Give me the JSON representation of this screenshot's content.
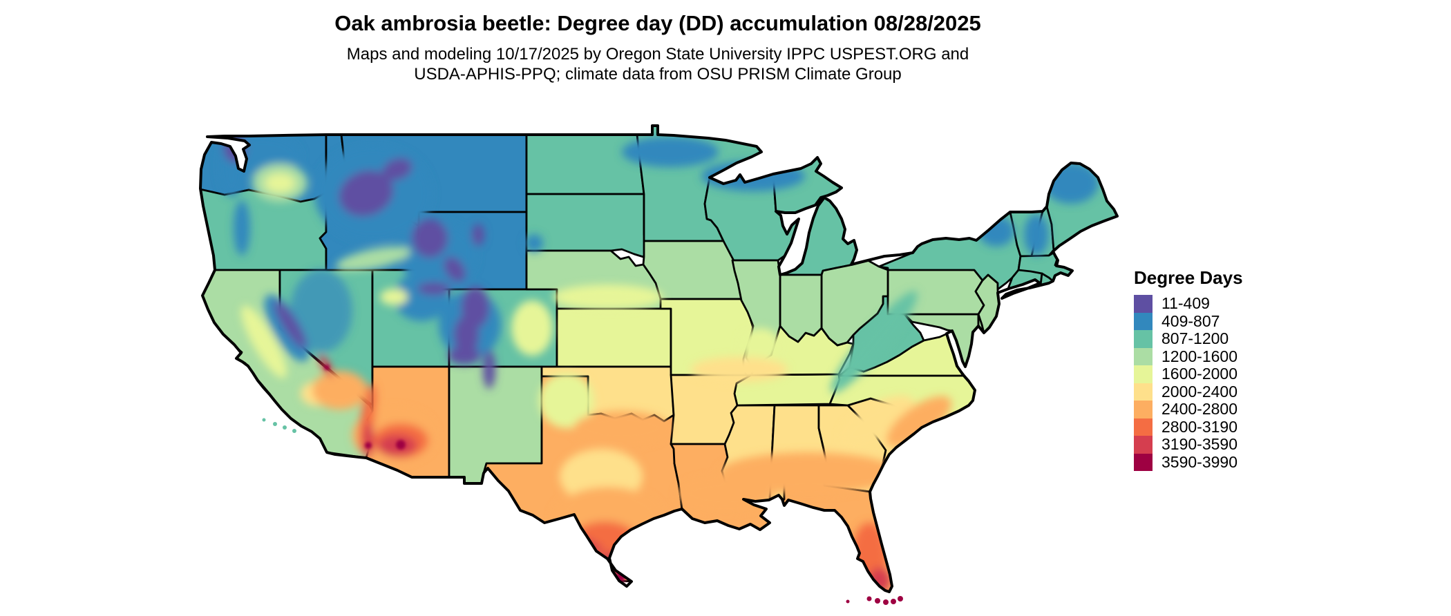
{
  "figure": {
    "title": "Oak ambrosia beetle: Degree day (DD) accumulation 08/28/2025",
    "subtitle_line1": "Maps and modeling 10/17/2025 by Oregon State University IPPC USPEST.ORG and",
    "subtitle_line2": "USDA-APHIS-PPQ; climate data from OSU PRISM Climate Group"
  },
  "legend": {
    "title": "Degree Days",
    "items": [
      {
        "label": "11-409",
        "color": "#5e4fa2"
      },
      {
        "label": "409-807",
        "color": "#3288bd"
      },
      {
        "label": "807-1200",
        "color": "#66c2a5"
      },
      {
        "label": "1200-1600",
        "color": "#abdda4"
      },
      {
        "label": "1600-2000",
        "color": "#e6f598"
      },
      {
        "label": "2000-2400",
        "color": "#fee08b"
      },
      {
        "label": "2400-2800",
        "color": "#fdae61"
      },
      {
        "label": "2800-3190",
        "color": "#f46d43"
      },
      {
        "label": "3190-3590",
        "color": "#d53e4f"
      },
      {
        "label": "3590-3990",
        "color": "#9e0142"
      }
    ]
  },
  "map": {
    "type": "choropleth_degree_day_raster",
    "region": "Contiguous United States",
    "value_unit": "degree days",
    "state_classes": {
      "WA": "409-807",
      "OR": "807-1200",
      "CA": "1200-1600",
      "NV": "807-1200",
      "ID": "409-807",
      "MT": "409-807",
      "WY": "409-807",
      "UT": "807-1200",
      "CO": "807-1200",
      "AZ": "2400-2800",
      "NM": "1200-1600",
      "ND": "807-1200",
      "SD": "807-1200",
      "NE": "1200-1600",
      "KS": "1600-2000",
      "OK": "2000-2400",
      "TX": "2400-2800",
      "MN": "807-1200",
      "IA": "1200-1600",
      "MO": "1600-2000",
      "AR": "2000-2400",
      "LA": "2400-2800",
      "WI": "807-1200",
      "MI": "807-1200",
      "IL": "1200-1600",
      "IN": "1200-1600",
      "OH": "1200-1600",
      "KY": "1600-2000",
      "TN": "1600-2000",
      "MS": "2000-2400",
      "AL": "2000-2400",
      "GA": "2000-2400",
      "FL": "2400-2800",
      "SC": "2000-2400",
      "NC": "1600-2000",
      "VA": "1600-2000",
      "WV": "807-1200",
      "PA": "1200-1600",
      "NY": "807-1200",
      "NJ": "1200-1600",
      "MD": "1200-1600",
      "DE": "1200-1600",
      "VT": "807-1200",
      "NH": "807-1200",
      "ME": "807-1200",
      "MA": "807-1200",
      "CT": "807-1200",
      "RI": "807-1200"
    }
  }
}
